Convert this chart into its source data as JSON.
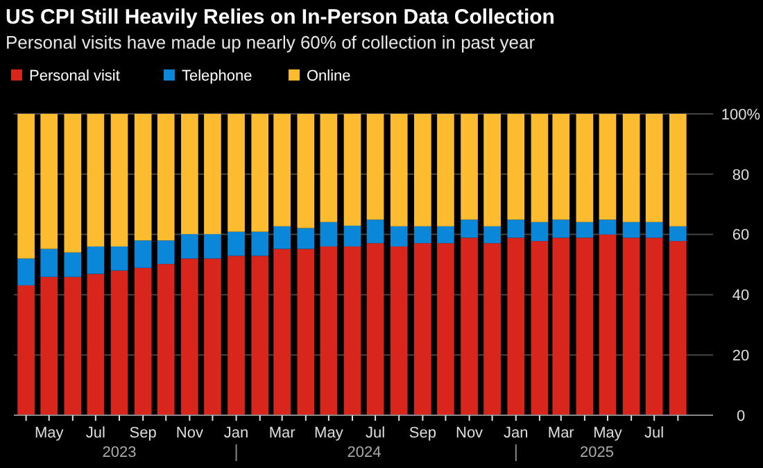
{
  "chart_data": {
    "type": "bar",
    "stacked": true,
    "title": "US CPI Still Heavily Relies on In-Person Data Collection",
    "subtitle": "Personal visits have made up nearly 60% of collection in past year",
    "x": [
      "2023-04",
      "2023-05",
      "2023-06",
      "2023-07",
      "2023-08",
      "2023-09",
      "2023-10",
      "2023-11",
      "2023-12",
      "2024-01",
      "2024-02",
      "2024-03",
      "2024-04",
      "2024-05",
      "2024-06",
      "2024-07",
      "2024-08",
      "2024-09",
      "2024-10",
      "2024-11",
      "2024-12",
      "2025-01",
      "2025-02",
      "2025-03",
      "2025-04",
      "2025-05",
      "2025-06",
      "2025-07",
      "2025-08"
    ],
    "series": [
      {
        "name": "Personal visit",
        "color": "#d9261c",
        "values": [
          43.1,
          45.9,
          45.9,
          46.9,
          48.0,
          48.9,
          50.2,
          52.0,
          52.0,
          52.9,
          52.9,
          55.2,
          55.2,
          56.0,
          56.0,
          57.1,
          56.0,
          57.1,
          57.1,
          58.9,
          57.1,
          58.9,
          57.8,
          58.9,
          58.9,
          60.0,
          58.9,
          58.9,
          57.8
        ]
      },
      {
        "name": "Telephone",
        "color": "#0a87d8",
        "values": [
          8.9,
          9.3,
          8.1,
          9.1,
          8.0,
          9.1,
          7.8,
          8.1,
          8.1,
          8.0,
          8.0,
          7.5,
          6.9,
          8.1,
          6.9,
          7.8,
          6.7,
          5.6,
          5.6,
          6.0,
          5.6,
          6.0,
          6.3,
          6.0,
          5.2,
          4.9,
          5.2,
          5.2,
          4.9
        ]
      },
      {
        "name": "Online",
        "color": "#fdbc30",
        "values": [
          48.0,
          44.8,
          46.0,
          44.0,
          44.0,
          42.0,
          42.0,
          39.9,
          39.9,
          39.1,
          39.1,
          37.3,
          37.9,
          35.9,
          37.1,
          35.1,
          37.3,
          37.3,
          37.3,
          35.1,
          37.3,
          35.1,
          35.9,
          35.1,
          35.9,
          35.1,
          35.9,
          35.9,
          37.3
        ]
      }
    ],
    "ylim": [
      0,
      100
    ],
    "yticks": [
      0,
      20,
      40,
      60,
      80,
      {
        "value": 100,
        "label": "100%"
      }
    ],
    "xticks": [
      {
        "value": "2023-04",
        "label": null
      },
      {
        "value": "2023-05",
        "label": "May"
      },
      {
        "value": "2023-06",
        "label": null
      },
      {
        "value": "2023-07",
        "label": "Jul"
      },
      {
        "value": "2023-08",
        "label": null
      },
      {
        "value": "2023-09",
        "label": "Sep"
      },
      {
        "value": "2023-10",
        "label": null
      },
      {
        "value": "2023-11",
        "label": "Nov"
      },
      {
        "value": "2023-12",
        "label": null
      },
      {
        "value": "2024-01",
        "label": "Jan"
      },
      {
        "value": "2024-02",
        "label": null
      },
      {
        "value": "2024-03",
        "label": "Mar"
      },
      {
        "value": "2024-04",
        "label": null
      },
      {
        "value": "2024-05",
        "label": "May"
      },
      {
        "value": "2024-06",
        "label": null
      },
      {
        "value": "2024-07",
        "label": "Jul"
      },
      {
        "value": "2024-08",
        "label": null
      },
      {
        "value": "2024-09",
        "label": "Sep"
      },
      {
        "value": "2024-10",
        "label": null
      },
      {
        "value": "2024-11",
        "label": "Nov"
      },
      {
        "value": "2024-12",
        "label": null
      },
      {
        "value": "2025-01",
        "label": "Jan"
      },
      {
        "value": "2025-02",
        "label": null
      },
      {
        "value": "2025-03",
        "label": "Mar"
      },
      {
        "value": "2025-04",
        "label": null
      },
      {
        "value": "2025-05",
        "label": "May"
      },
      {
        "value": "2025-06",
        "label": null
      },
      {
        "value": "2025-07",
        "label": "Jul"
      },
      {
        "value": "2025-08",
        "label": null
      }
    ],
    "xlim": [
      "2023-03-16",
      "2025-09-16"
    ],
    "annotations": [
      "2023",
      "2024",
      "2025"
    ],
    "grid": "y",
    "legend": "top left"
  }
}
